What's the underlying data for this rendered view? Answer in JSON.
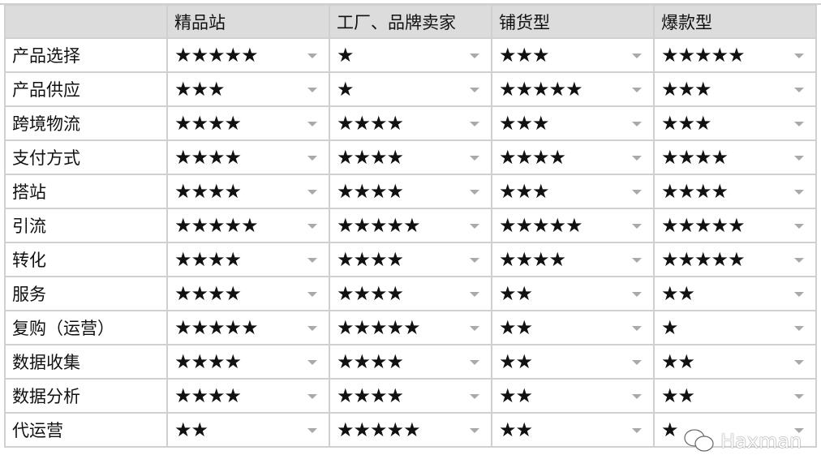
{
  "header": {
    "columns": [
      "",
      "精品站",
      "工厂、品牌卖家",
      "铺货型",
      "爆款型"
    ]
  },
  "rows": [
    {
      "label": "产品选择",
      "values": [
        "★★★★★",
        "★",
        "★★★",
        "★★★★★"
      ]
    },
    {
      "label": "产品供应",
      "values": [
        "★★★",
        "★",
        "★★★★★",
        "★★★"
      ]
    },
    {
      "label": "跨境物流",
      "values": [
        "★★★★",
        "★★★★",
        "★★★",
        "★★★"
      ]
    },
    {
      "label": "支付方式",
      "values": [
        "★★★★",
        "★★★★",
        "★★★★",
        "★★★★"
      ]
    },
    {
      "label": "搭站",
      "values": [
        "★★★★",
        "★★★★",
        "★★★",
        "★★★★"
      ]
    },
    {
      "label": "引流",
      "values": [
        "★★★★★",
        "★★★★★",
        "★★★★★",
        "★★★★★"
      ]
    },
    {
      "label": "转化",
      "values": [
        "★★★★",
        "★★★★",
        "★★★★",
        "★★★★★"
      ]
    },
    {
      "label": "服务",
      "values": [
        "★★★★",
        "★★★★",
        "★★",
        "★★"
      ]
    },
    {
      "label": "复购（运营）",
      "values": [
        "★★★★★",
        "★★★★★",
        "★★",
        "★"
      ]
    },
    {
      "label": "数据收集",
      "values": [
        "★★★★",
        "★★★★",
        "★★",
        "★★"
      ]
    },
    {
      "label": "数据分析",
      "values": [
        "★★★★",
        "★★★★",
        "★★",
        "★★"
      ]
    },
    {
      "label": "代运营",
      "values": [
        "★★",
        "★★★★★",
        "★★",
        "★"
      ]
    }
  ],
  "watermark": {
    "text": "Haxman",
    "icon": "wechat-icon"
  }
}
